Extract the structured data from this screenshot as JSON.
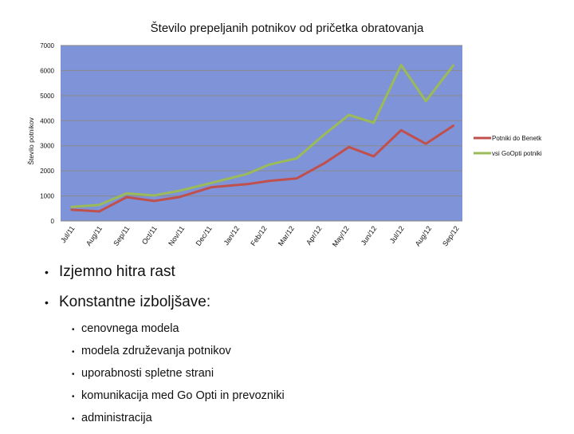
{
  "chart_data": {
    "type": "line",
    "title": "Število prepeljanih potnikov od pričetka obratovanja",
    "ylabel": "Število potnikov",
    "xlabel": "",
    "ylim": [
      0,
      7000
    ],
    "yticks": [
      0,
      1000,
      2000,
      3000,
      4000,
      5000,
      6000,
      7000
    ],
    "categories": [
      "Jul/11",
      "Aug/11",
      "Sep/11",
      "Oct/11",
      "Nov/11",
      "Dec/11",
      "Jan/12",
      "Feb/12",
      "Mar/12",
      "Apr/12",
      "May/12",
      "Jun/12",
      "Jul/12",
      "Aug/12",
      "Sep/12"
    ],
    "x": [
      0,
      1,
      2,
      3,
      3.9,
      5.1,
      6.4,
      7.2,
      8.2,
      9.2,
      10.1,
      11.0,
      12.0,
      12.9,
      13.9
    ],
    "series": [
      {
        "name": "Potniki do Benetk",
        "color": "#c0504d",
        "values": [
          450,
          380,
          950,
          800,
          950,
          1350,
          1470,
          1600,
          1700,
          2300,
          2950,
          2580,
          3620,
          3080,
          3800
        ]
      },
      {
        "name": "vsi GoOpti potniki",
        "color": "#9bbb59",
        "values": [
          560,
          640,
          1100,
          1020,
          1200,
          1520,
          1880,
          2250,
          2500,
          3450,
          4230,
          3920,
          6220,
          4780,
          6200
        ]
      }
    ],
    "legend": "right",
    "plot_background": "#7f93d8",
    "grid": true
  },
  "bullets": [
    {
      "text": "Izjemno hitra rast",
      "sub": []
    },
    {
      "text": "Konstantne izboljšave:",
      "sub": [
        "cenovnega modela",
        "modela združevanja potnikov",
        "uporabnosti spletne strani",
        "komunikacija med Go Opti in prevozniki",
        "administracija"
      ]
    }
  ]
}
